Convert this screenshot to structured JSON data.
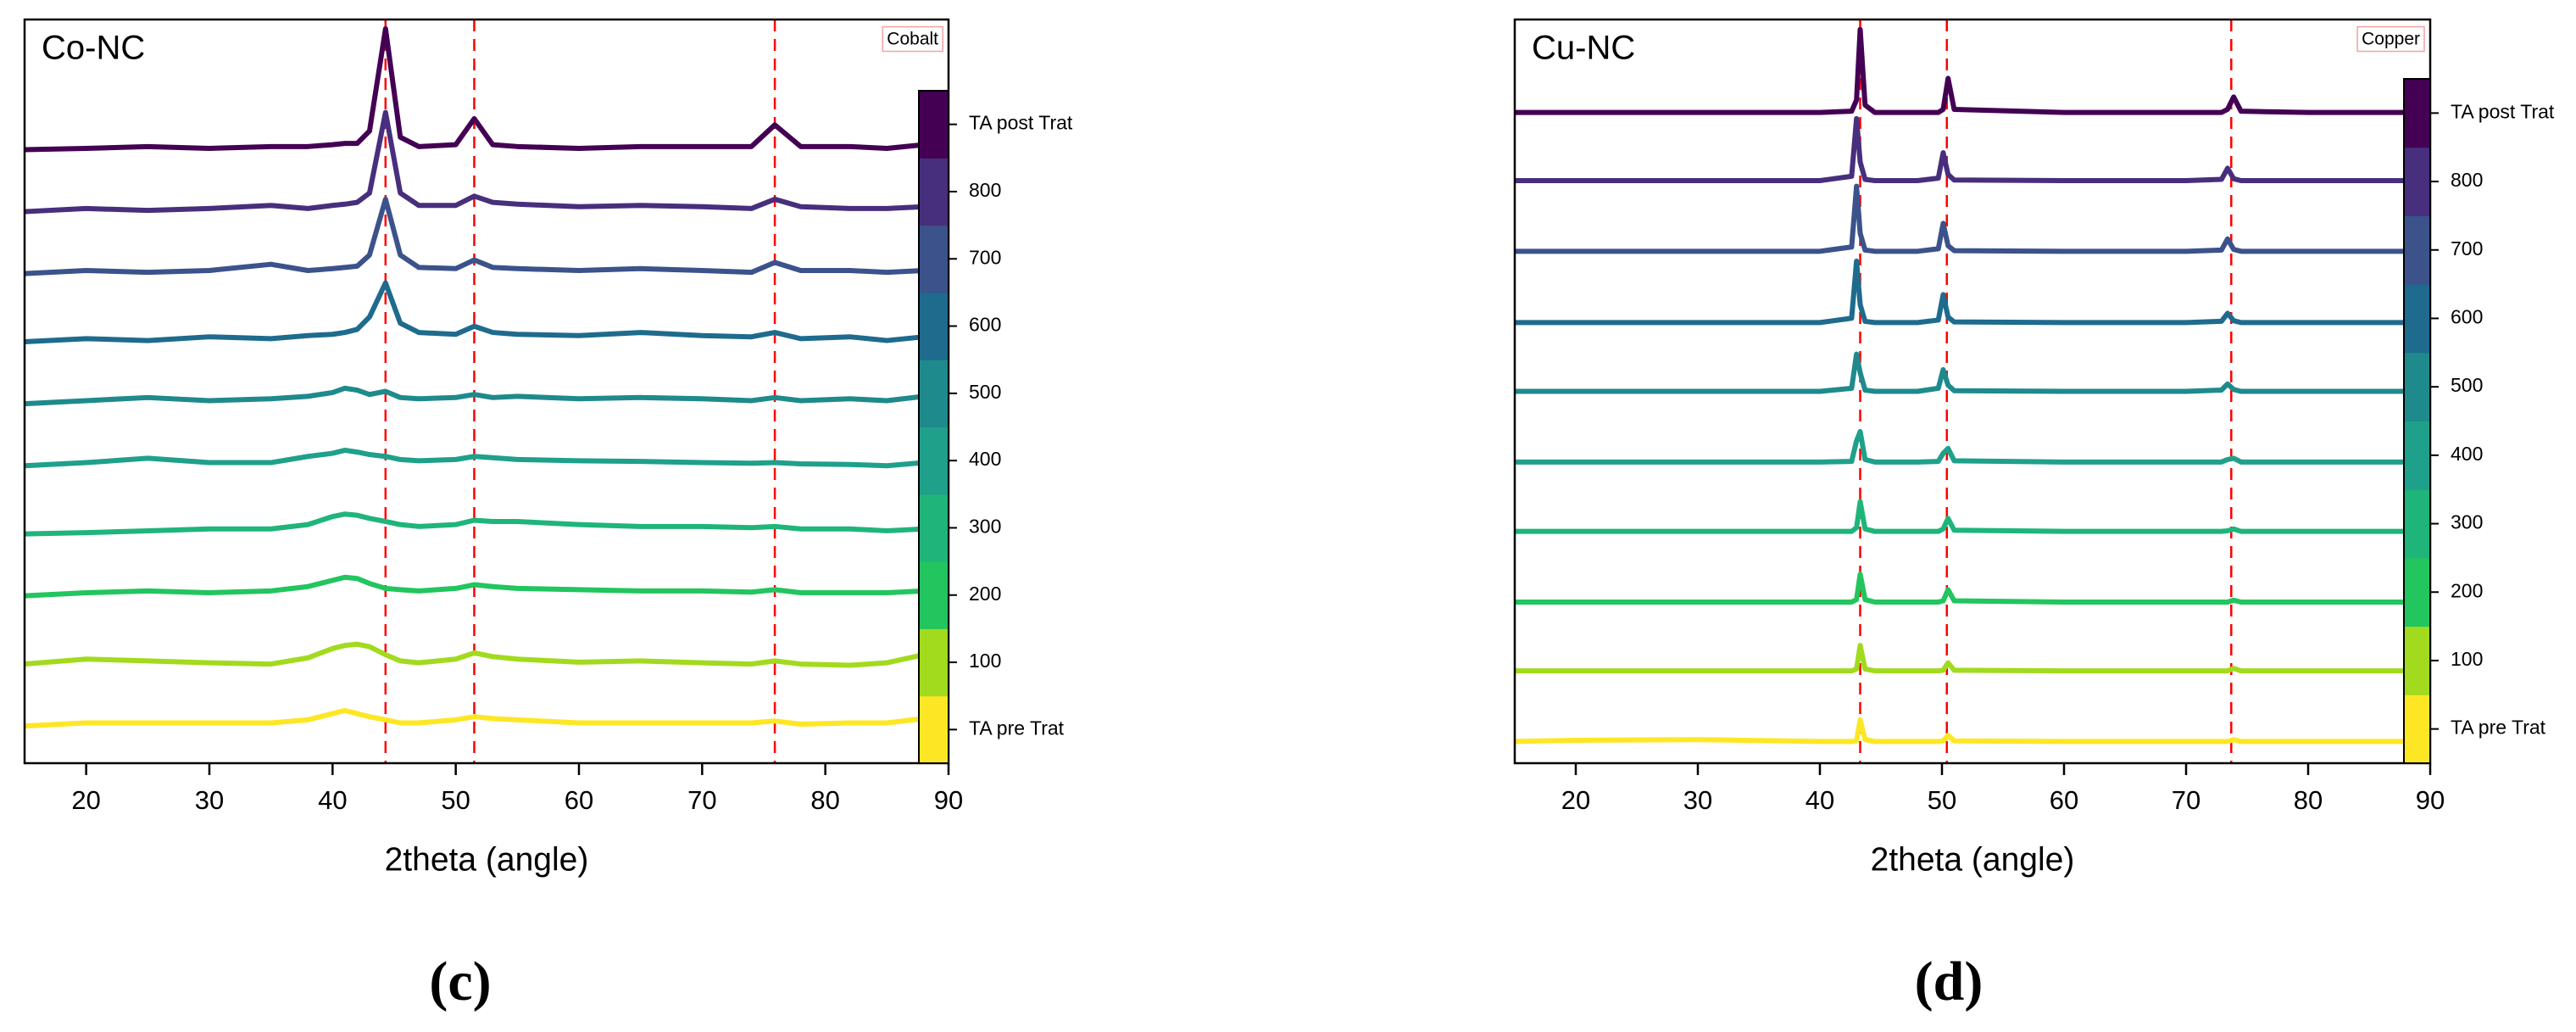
{
  "chart_data": [
    {
      "type": "line",
      "title": "Co-NC",
      "annotation": "Cobalt",
      "panel_label": "(c)",
      "x_label": "2theta (angle)",
      "xlim": [
        15,
        90
      ],
      "xticks": [
        20,
        30,
        40,
        50,
        60,
        70,
        80,
        90
      ],
      "ylim": [
        0,
        12
      ],
      "legend": "colorbar",
      "reference_lines": [
        44.3,
        51.5,
        75.9
      ],
      "reference_line_color": "#ff0000",
      "x": [
        15,
        20,
        25,
        30,
        35,
        38,
        40,
        41,
        42,
        43,
        44.3,
        45.5,
        47,
        50,
        51.5,
        53,
        55,
        60,
        65,
        70,
        74,
        75.9,
        78,
        82,
        85,
        88
      ],
      "series": [
        {
          "name": "TA pre Trat",
          "color": "#fde725",
          "values": [
            0.6,
            0.65,
            0.65,
            0.65,
            0.65,
            0.7,
            0.8,
            0.85,
            0.8,
            0.75,
            0.7,
            0.65,
            0.65,
            0.7,
            0.75,
            0.72,
            0.7,
            0.65,
            0.65,
            0.65,
            0.65,
            0.68,
            0.63,
            0.65,
            0.65,
            0.72
          ]
        },
        {
          "name": "100",
          "color": "#a2da1e",
          "values": [
            1.6,
            1.68,
            1.65,
            1.62,
            1.6,
            1.7,
            1.85,
            1.9,
            1.92,
            1.88,
            1.75,
            1.65,
            1.62,
            1.68,
            1.78,
            1.72,
            1.68,
            1.63,
            1.65,
            1.62,
            1.6,
            1.65,
            1.6,
            1.58,
            1.62,
            1.75
          ]
        },
        {
          "name": "200",
          "color": "#22c55e",
          "values": [
            2.7,
            2.75,
            2.78,
            2.75,
            2.78,
            2.85,
            2.95,
            3.0,
            2.98,
            2.9,
            2.82,
            2.8,
            2.78,
            2.82,
            2.88,
            2.85,
            2.82,
            2.8,
            2.78,
            2.78,
            2.76,
            2.8,
            2.75,
            2.75,
            2.75,
            2.78
          ]
        },
        {
          "name": "300",
          "color": "#1fb57a",
          "values": [
            3.7,
            3.72,
            3.75,
            3.78,
            3.78,
            3.85,
            3.98,
            4.02,
            4.0,
            3.95,
            3.9,
            3.85,
            3.82,
            3.85,
            3.92,
            3.9,
            3.9,
            3.85,
            3.82,
            3.82,
            3.8,
            3.82,
            3.78,
            3.78,
            3.75,
            3.78
          ]
        },
        {
          "name": "400",
          "color": "#1fa08a",
          "values": [
            4.8,
            4.85,
            4.92,
            4.85,
            4.85,
            4.95,
            5.0,
            5.05,
            5.02,
            4.98,
            4.95,
            4.9,
            4.88,
            4.9,
            4.95,
            4.93,
            4.9,
            4.88,
            4.87,
            4.85,
            4.84,
            4.85,
            4.83,
            4.82,
            4.8,
            4.85
          ]
        },
        {
          "name": "500",
          "color": "#1f8a8c",
          "values": [
            5.8,
            5.85,
            5.9,
            5.85,
            5.88,
            5.92,
            5.98,
            6.05,
            6.02,
            5.95,
            6.0,
            5.9,
            5.88,
            5.9,
            5.95,
            5.9,
            5.92,
            5.88,
            5.9,
            5.88,
            5.85,
            5.9,
            5.85,
            5.88,
            5.85,
            5.92
          ]
        },
        {
          "name": "600",
          "color": "#1e6b8e",
          "values": [
            6.8,
            6.85,
            6.82,
            6.88,
            6.85,
            6.9,
            6.92,
            6.95,
            7.0,
            7.2,
            7.75,
            7.1,
            6.95,
            6.92,
            7.05,
            6.95,
            6.92,
            6.9,
            6.95,
            6.9,
            6.88,
            6.95,
            6.85,
            6.88,
            6.82,
            6.88
          ]
        },
        {
          "name": "700",
          "color": "#3b528b",
          "values": [
            7.9,
            7.95,
            7.92,
            7.95,
            8.05,
            7.95,
            7.98,
            8.0,
            8.02,
            8.2,
            9.1,
            8.2,
            8.0,
            7.98,
            8.12,
            8.0,
            7.98,
            7.95,
            7.98,
            7.95,
            7.92,
            8.08,
            7.95,
            7.95,
            7.92,
            7.95
          ]
        },
        {
          "name": "800",
          "color": "#472f7d",
          "values": [
            8.9,
            8.95,
            8.92,
            8.95,
            9.0,
            8.95,
            9.0,
            9.02,
            9.05,
            9.2,
            10.5,
            9.2,
            9.0,
            9.0,
            9.15,
            9.05,
            9.02,
            8.98,
            9.0,
            8.98,
            8.95,
            9.1,
            8.98,
            8.95,
            8.95,
            8.98
          ]
        },
        {
          "name": "TA post Trat",
          "color": "#440154",
          "values": [
            9.9,
            9.92,
            9.95,
            9.92,
            9.95,
            9.95,
            9.98,
            10.0,
            10.0,
            10.2,
            11.85,
            10.1,
            9.95,
            9.98,
            10.4,
            9.98,
            9.95,
            9.92,
            9.95,
            9.95,
            9.95,
            10.3,
            9.95,
            9.95,
            9.92,
            9.98
          ]
        }
      ]
    },
    {
      "type": "line",
      "title": "Cu-NC",
      "annotation": "Copper",
      "panel_label": "(d)",
      "x_label": "2theta (angle)",
      "xlim": [
        15,
        90
      ],
      "xticks": [
        20,
        30,
        40,
        50,
        60,
        70,
        80,
        90
      ],
      "ylim": [
        0,
        12
      ],
      "legend": "colorbar",
      "reference_lines": [
        43.3,
        50.4,
        73.7
      ],
      "reference_line_color": "#ff0000",
      "x": [
        15,
        20,
        30,
        40,
        42.6,
        43.0,
        43.3,
        43.7,
        44.5,
        48,
        49.7,
        50.1,
        50.5,
        51.0,
        60,
        70,
        72.9,
        73.4,
        73.9,
        74.5,
        80,
        88
      ],
      "series": [
        {
          "name": "TA pre Trat",
          "color": "#fde725",
          "values": [
            0.35,
            0.37,
            0.38,
            0.35,
            0.35,
            0.36,
            0.7,
            0.38,
            0.35,
            0.35,
            0.35,
            0.36,
            0.45,
            0.36,
            0.35,
            0.35,
            0.35,
            0.35,
            0.38,
            0.35,
            0.35,
            0.35
          ]
        },
        {
          "name": "100",
          "color": "#a2da1e",
          "values": [
            1.49,
            1.49,
            1.49,
            1.49,
            1.49,
            1.52,
            1.9,
            1.52,
            1.49,
            1.49,
            1.49,
            1.5,
            1.62,
            1.5,
            1.49,
            1.49,
            1.49,
            1.49,
            1.53,
            1.49,
            1.49,
            1.49
          ]
        },
        {
          "name": "200",
          "color": "#22c55e",
          "values": [
            2.6,
            2.6,
            2.6,
            2.6,
            2.6,
            2.64,
            3.05,
            2.64,
            2.6,
            2.6,
            2.6,
            2.62,
            2.8,
            2.62,
            2.6,
            2.6,
            2.6,
            2.6,
            2.63,
            2.6,
            2.6,
            2.6
          ]
        },
        {
          "name": "300",
          "color": "#1fb57a",
          "values": [
            3.74,
            3.74,
            3.74,
            3.74,
            3.74,
            3.8,
            4.22,
            3.78,
            3.74,
            3.74,
            3.74,
            3.78,
            3.95,
            3.76,
            3.74,
            3.74,
            3.74,
            3.75,
            3.78,
            3.74,
            3.74,
            3.74
          ]
        },
        {
          "name": "400",
          "color": "#1fa08a",
          "values": [
            4.86,
            4.86,
            4.86,
            4.86,
            4.87,
            5.2,
            5.35,
            4.9,
            4.86,
            4.86,
            4.87,
            5.0,
            5.08,
            4.88,
            4.86,
            4.86,
            4.86,
            4.9,
            4.92,
            4.86,
            4.86,
            4.86
          ]
        },
        {
          "name": "500",
          "color": "#1f8a8c",
          "values": [
            6.0,
            6.0,
            6.0,
            6.0,
            6.05,
            6.6,
            6.3,
            6.02,
            6.0,
            6.0,
            6.05,
            6.35,
            6.1,
            6.01,
            6.0,
            6.0,
            6.02,
            6.12,
            6.03,
            6.0,
            6.0,
            6.0
          ]
        },
        {
          "name": "600",
          "color": "#1e6b8e",
          "values": [
            7.11,
            7.11,
            7.11,
            7.11,
            7.18,
            8.1,
            7.4,
            7.13,
            7.11,
            7.11,
            7.15,
            7.56,
            7.2,
            7.12,
            7.11,
            7.11,
            7.13,
            7.26,
            7.14,
            7.11,
            7.11,
            7.11
          ]
        },
        {
          "name": "700",
          "color": "#3b528b",
          "values": [
            8.26,
            8.26,
            8.26,
            8.26,
            8.33,
            9.31,
            8.55,
            8.28,
            8.26,
            8.26,
            8.3,
            8.71,
            8.35,
            8.27,
            8.26,
            8.26,
            8.28,
            8.46,
            8.29,
            8.26,
            8.26,
            8.26
          ]
        },
        {
          "name": "800",
          "color": "#472f7d",
          "values": [
            9.4,
            9.4,
            9.4,
            9.4,
            9.47,
            10.4,
            9.7,
            9.42,
            9.4,
            9.4,
            9.44,
            9.85,
            9.5,
            9.41,
            9.4,
            9.4,
            9.42,
            9.6,
            9.43,
            9.4,
            9.4,
            9.4
          ]
        },
        {
          "name": "TA post Trat",
          "color": "#440154",
          "values": [
            10.5,
            10.5,
            10.5,
            10.5,
            10.52,
            10.7,
            11.84,
            10.62,
            10.5,
            10.5,
            10.5,
            10.55,
            11.05,
            10.55,
            10.5,
            10.5,
            10.5,
            10.55,
            10.75,
            10.52,
            10.5,
            10.5
          ]
        }
      ]
    }
  ]
}
